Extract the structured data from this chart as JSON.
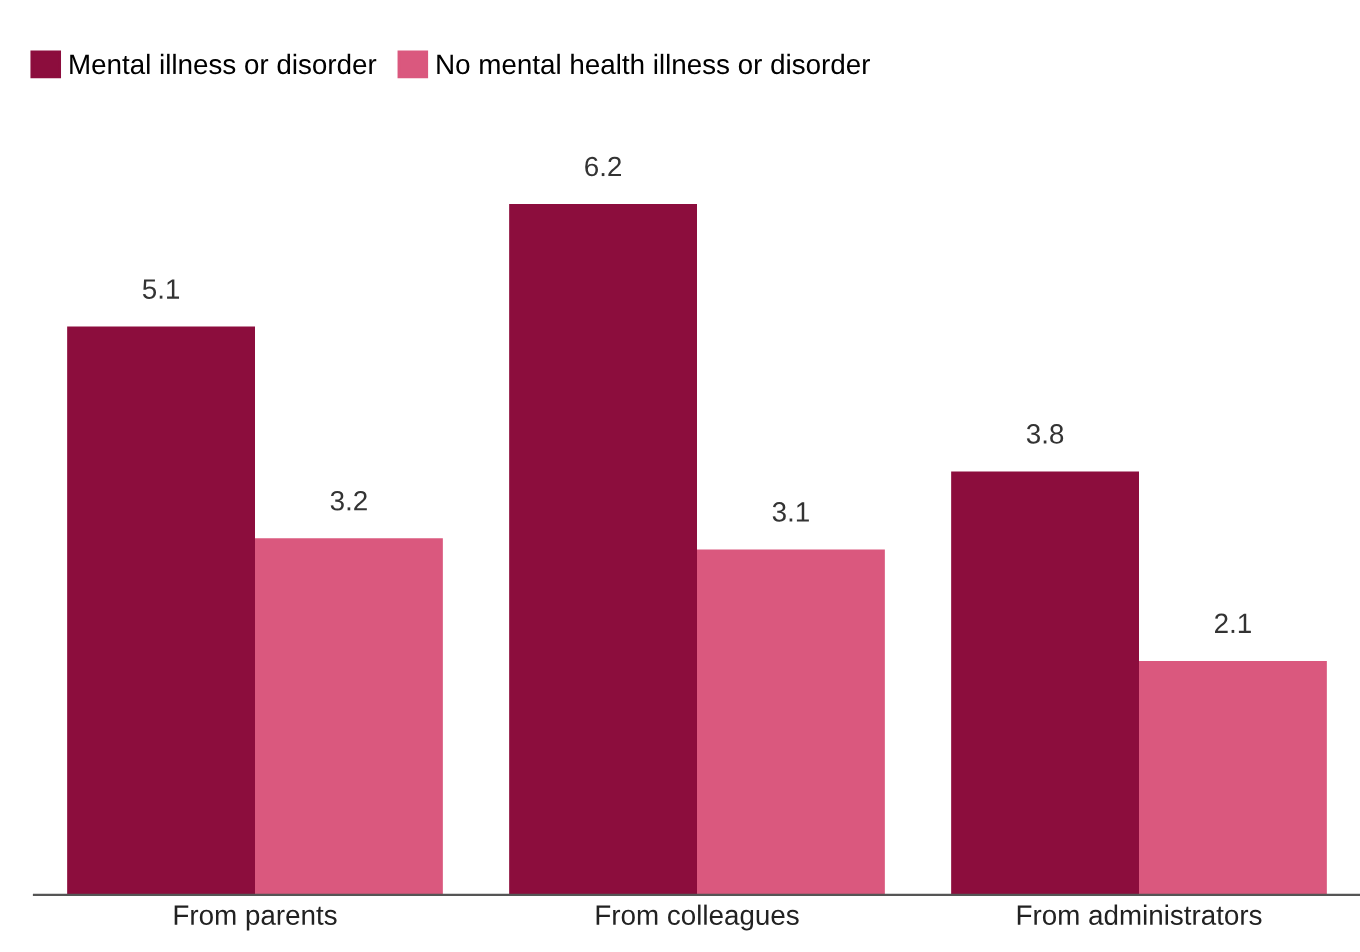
{
  "chart_data": {
    "type": "bar",
    "categories": [
      "From parents",
      "From colleagues",
      "From administrators"
    ],
    "series": [
      {
        "name": "Mental illness or disorder",
        "color": "#8c0d3d",
        "values": [
          5.1,
          6.2,
          3.8
        ]
      },
      {
        "name": "No mental health illness or disorder",
        "color": "#da587e",
        "values": [
          3.2,
          3.1,
          2.1
        ]
      }
    ],
    "data_labels": true,
    "legend": "top left",
    "grid": false
  }
}
